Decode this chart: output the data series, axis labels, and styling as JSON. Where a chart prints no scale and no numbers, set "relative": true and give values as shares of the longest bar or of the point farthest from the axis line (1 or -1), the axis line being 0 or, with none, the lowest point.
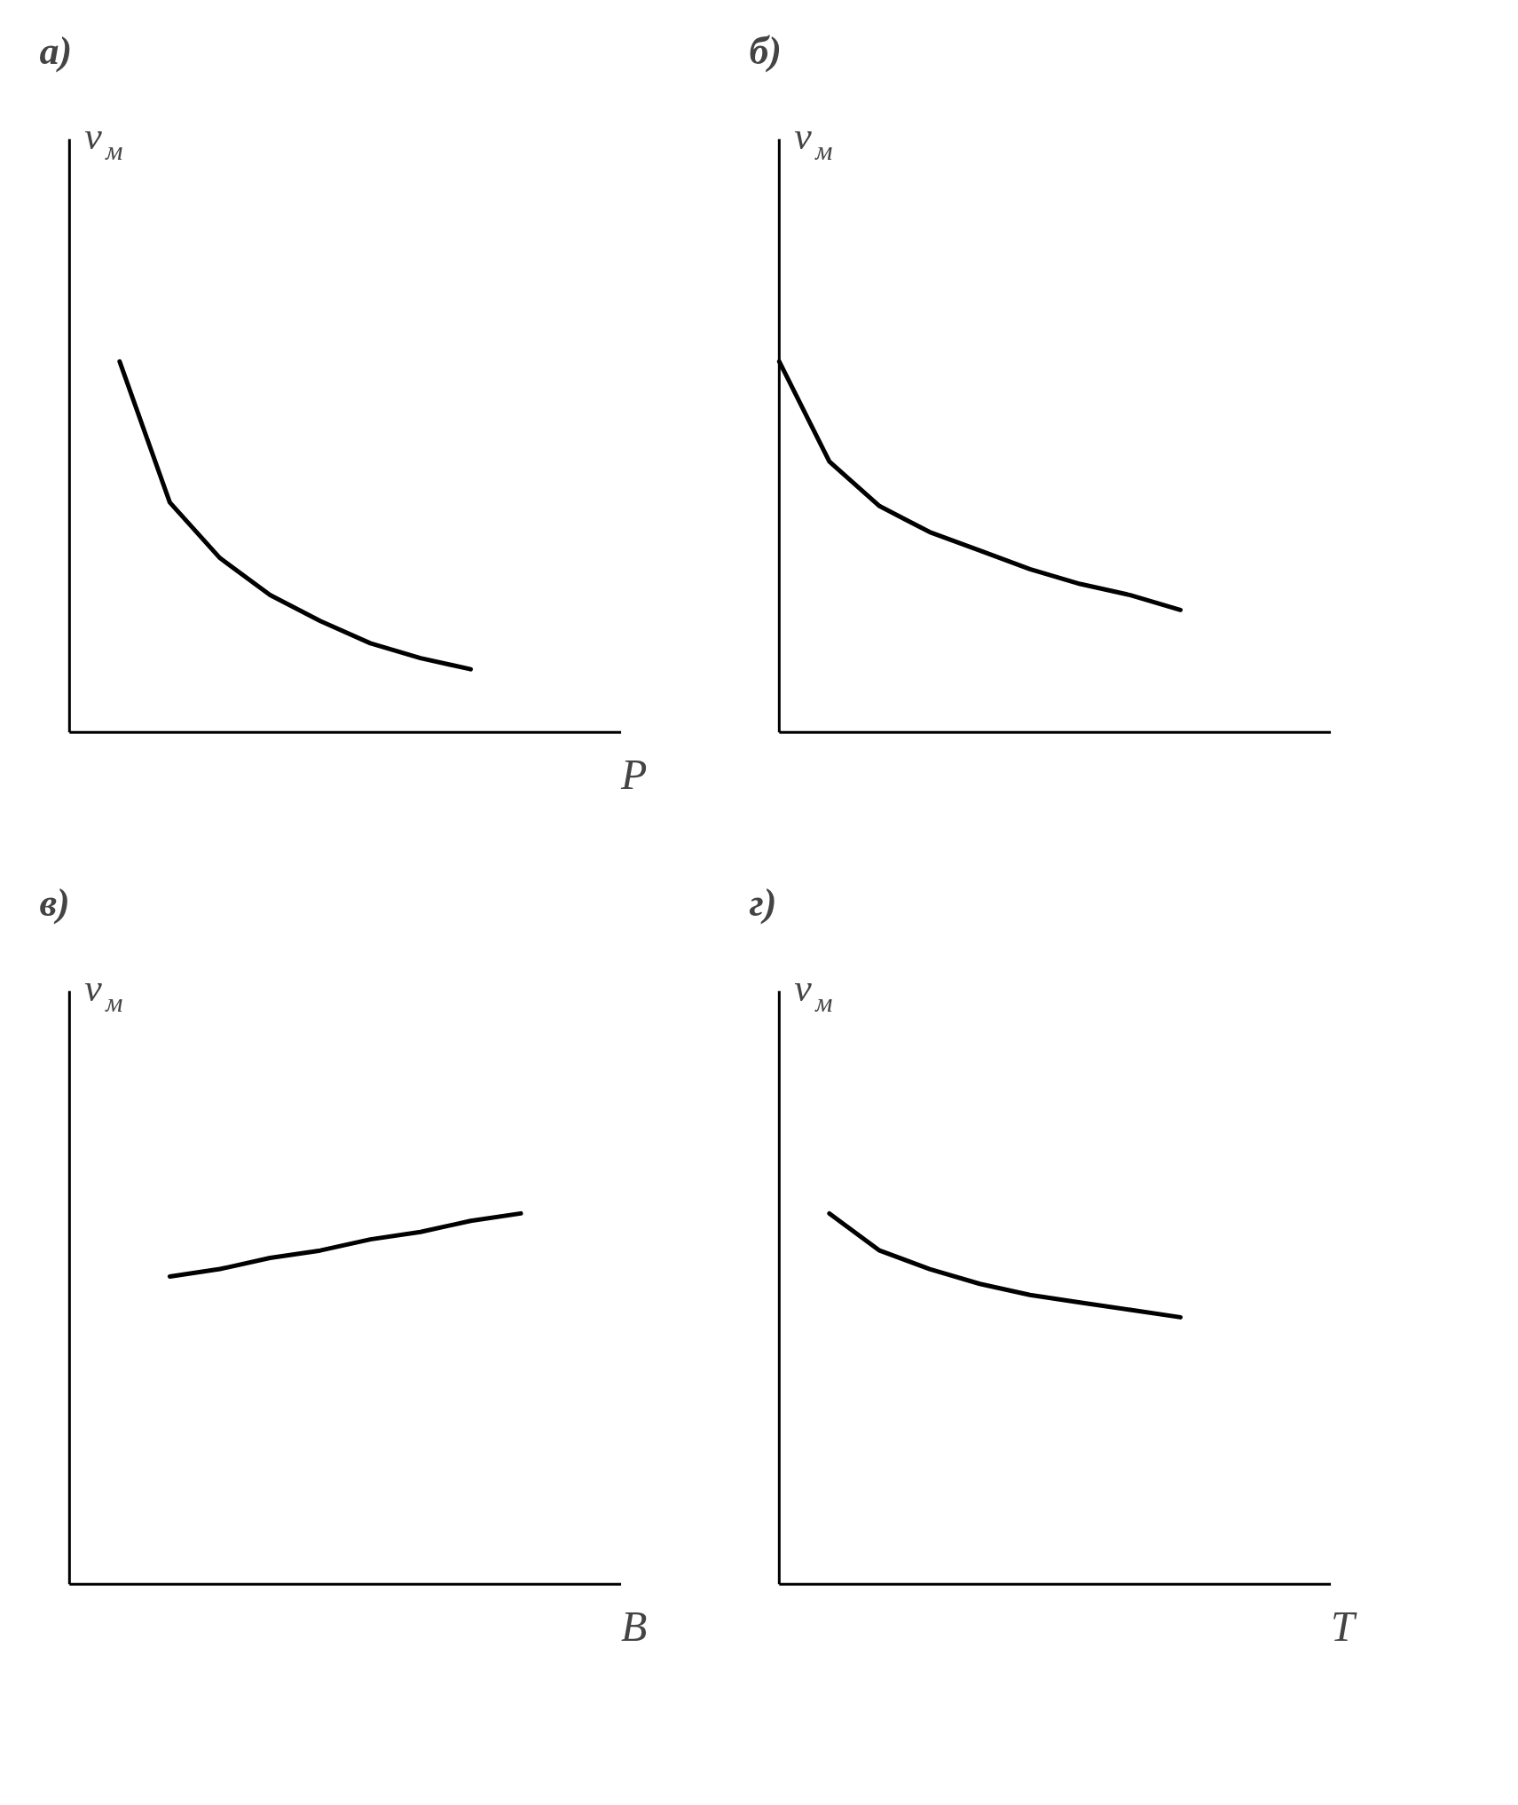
{
  "chart_data": [
    {
      "type": "line",
      "title": "а)",
      "ylabel": "v$_{м}$",
      "xlabel": "P",
      "relative": true,
      "categories": [
        null,
        null,
        null,
        null,
        null,
        null,
        null,
        null,
        null,
        null,
        null,
        null
      ],
      "series": [
        {
          "color": "#000000",
          "values": [
            null,
            1,
            0.62,
            0.47,
            0.37,
            0.3,
            0.24,
            0.2,
            0.17,
            null,
            null,
            null
          ]
        }
      ]
    },
    {
      "type": "line",
      "title": "б)",
      "ylabel": "v$_{м}$",
      "relative": true,
      "categories": [
        null,
        null,
        null,
        null,
        null,
        null,
        null,
        null,
        null,
        null,
        null,
        null
      ],
      "series": [
        {
          "color": "#000000",
          "values": [
            1,
            0.73,
            0.61,
            0.54,
            0.49,
            0.44,
            0.4,
            0.37,
            0.33,
            null,
            null,
            null
          ]
        }
      ]
    },
    {
      "type": "line",
      "title": "в)",
      "ylabel": "v$_{м}$",
      "xlabel": "B",
      "relative": true,
      "categories": [
        null,
        null,
        null,
        null,
        null,
        null,
        null,
        null,
        null,
        null,
        null,
        null
      ],
      "series": [
        {
          "color": "#000000",
          "values": [
            null,
            null,
            0.83,
            0.85,
            0.88,
            0.9,
            0.93,
            0.95,
            0.98,
            1.0,
            null,
            null
          ]
        }
      ]
    },
    {
      "type": "line",
      "title": "г)",
      "ylabel": "v$_{м}$",
      "xlabel": "T",
      "relative": true,
      "categories": [
        null,
        null,
        null,
        null,
        null,
        null,
        null,
        null,
        null,
        null,
        null,
        null
      ],
      "series": [
        {
          "color": "#000000",
          "values": [
            null,
            1,
            0.9,
            0.85,
            0.81,
            0.78,
            0.76,
            0.74,
            0.72,
            null,
            null,
            null
          ]
        }
      ]
    }
  ]
}
